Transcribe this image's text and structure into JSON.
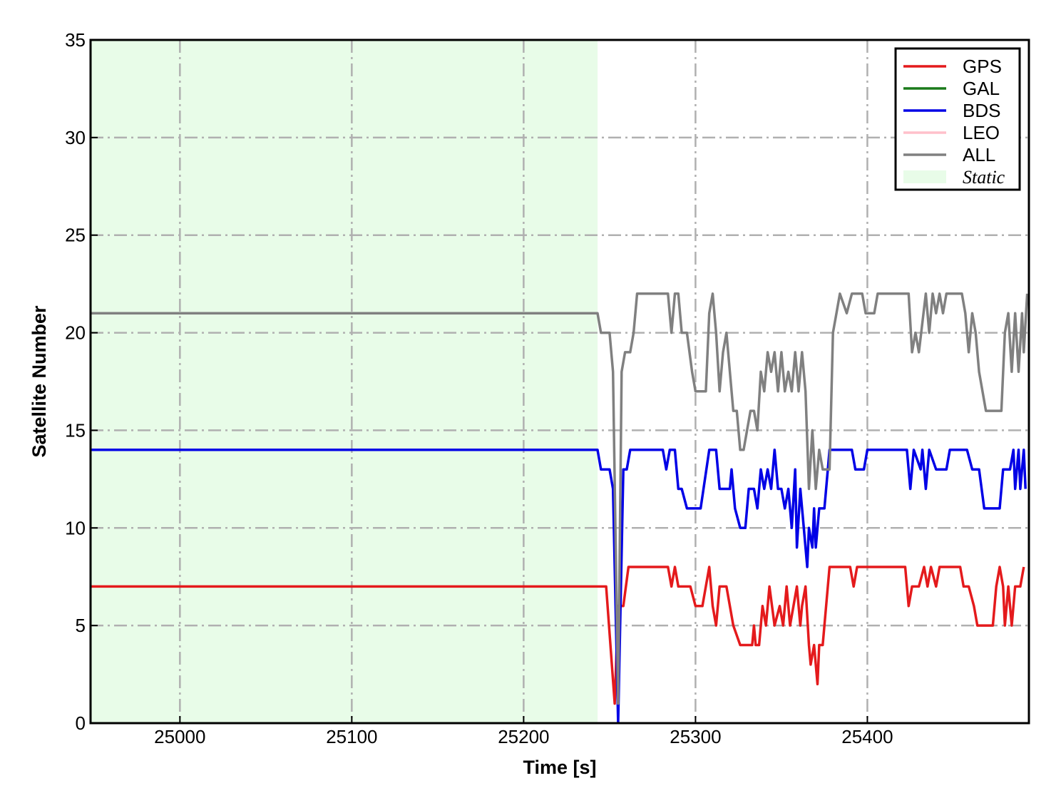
{
  "chart_data": {
    "type": "line",
    "title": "",
    "xlabel": "Time [s]",
    "ylabel": "Satellite Number",
    "xlim": [
      24948,
      25494
    ],
    "ylim": [
      0,
      35
    ],
    "xticks": [
      25000,
      25100,
      25200,
      25300,
      25400
    ],
    "yticks": [
      0,
      5,
      10,
      15,
      20,
      25,
      30,
      35
    ],
    "grid": true,
    "legend_position": "top-right",
    "static_region": {
      "label": "Static",
      "x_start": 24948,
      "x_end": 25243,
      "color": "#e8fce8"
    },
    "series": [
      {
        "name": "GPS",
        "color": "#e41a1c",
        "points": [
          [
            24948,
            7
          ],
          [
            25248,
            7
          ],
          [
            25253,
            1
          ],
          [
            25255,
            6
          ],
          [
            25258,
            6
          ],
          [
            25261,
            8
          ],
          [
            25284,
            8
          ],
          [
            25286,
            7
          ],
          [
            25288,
            8
          ],
          [
            25290,
            7
          ],
          [
            25297,
            7
          ],
          [
            25300,
            6
          ],
          [
            25304,
            6
          ],
          [
            25306,
            7
          ],
          [
            25308,
            8
          ],
          [
            25310,
            6
          ],
          [
            25312,
            5
          ],
          [
            25314,
            7
          ],
          [
            25318,
            7
          ],
          [
            25322,
            5
          ],
          [
            25326,
            4
          ],
          [
            25333,
            4
          ],
          [
            25334,
            5
          ],
          [
            25335,
            4
          ],
          [
            25337,
            4
          ],
          [
            25339,
            6
          ],
          [
            25341,
            5
          ],
          [
            25343,
            7
          ],
          [
            25346,
            5
          ],
          [
            25349,
            6
          ],
          [
            25351,
            5
          ],
          [
            25353,
            7
          ],
          [
            25355,
            5
          ],
          [
            25357,
            6
          ],
          [
            25359,
            7
          ],
          [
            25361,
            5
          ],
          [
            25362,
            6
          ],
          [
            25364,
            7
          ],
          [
            25366,
            4
          ],
          [
            25367,
            3
          ],
          [
            25369,
            4
          ],
          [
            25371,
            2
          ],
          [
            25372,
            4
          ],
          [
            25374,
            4
          ],
          [
            25378,
            8
          ],
          [
            25390,
            8
          ],
          [
            25392,
            7
          ],
          [
            25394,
            8
          ],
          [
            25422,
            8
          ],
          [
            25424,
            6
          ],
          [
            25426,
            7
          ],
          [
            25430,
            7
          ],
          [
            25433,
            8
          ],
          [
            25435,
            7
          ],
          [
            25437,
            8
          ],
          [
            25440,
            7
          ],
          [
            25442,
            8
          ],
          [
            25454,
            8
          ],
          [
            25456,
            7
          ],
          [
            25459,
            7
          ],
          [
            25462,
            6
          ],
          [
            25464,
            5
          ],
          [
            25473,
            5
          ],
          [
            25475,
            7
          ],
          [
            25477,
            8
          ],
          [
            25479,
            7
          ],
          [
            25480,
            5
          ],
          [
            25482,
            7
          ],
          [
            25484,
            5
          ],
          [
            25486,
            7
          ],
          [
            25489,
            7
          ],
          [
            25491,
            8
          ]
        ]
      },
      {
        "name": "GAL",
        "color": "#1a7a1a",
        "points": []
      },
      {
        "name": "BDS",
        "color": "#0000e6",
        "points": [
          [
            24948,
            14
          ],
          [
            25243,
            14
          ],
          [
            25245,
            13
          ],
          [
            25250,
            13
          ],
          [
            25252,
            12
          ],
          [
            25255,
            0
          ],
          [
            25258,
            13
          ],
          [
            25260,
            13
          ],
          [
            25262,
            14
          ],
          [
            25281,
            14
          ],
          [
            25283,
            13
          ],
          [
            25285,
            14
          ],
          [
            25288,
            14
          ],
          [
            25290,
            12
          ],
          [
            25292,
            12
          ],
          [
            25295,
            11
          ],
          [
            25303,
            11
          ],
          [
            25308,
            14
          ],
          [
            25312,
            14
          ],
          [
            25314,
            12
          ],
          [
            25320,
            12
          ],
          [
            25321,
            13
          ],
          [
            25323,
            11
          ],
          [
            25326,
            10
          ],
          [
            25329,
            10
          ],
          [
            25331,
            12
          ],
          [
            25334,
            12
          ],
          [
            25336,
            11
          ],
          [
            25338,
            13
          ],
          [
            25340,
            12
          ],
          [
            25342,
            13
          ],
          [
            25344,
            12
          ],
          [
            25346,
            14
          ],
          [
            25348,
            12
          ],
          [
            25350,
            12
          ],
          [
            25352,
            11
          ],
          [
            25354,
            12
          ],
          [
            25356,
            10
          ],
          [
            25358,
            13
          ],
          [
            25359,
            9
          ],
          [
            25361,
            12
          ],
          [
            25363,
            10
          ],
          [
            25365,
            8
          ],
          [
            25366,
            10
          ],
          [
            25368,
            9
          ],
          [
            25369,
            11
          ],
          [
            25370,
            9
          ],
          [
            25372,
            11
          ],
          [
            25375,
            11
          ],
          [
            25378,
            14
          ],
          [
            25391,
            14
          ],
          [
            25393,
            13
          ],
          [
            25398,
            13
          ],
          [
            25400,
            14
          ],
          [
            25423,
            14
          ],
          [
            25425,
            12
          ],
          [
            25427,
            14
          ],
          [
            25431,
            13
          ],
          [
            25432,
            14
          ],
          [
            25434,
            12
          ],
          [
            25436,
            14
          ],
          [
            25440,
            13
          ],
          [
            25446,
            13
          ],
          [
            25448,
            14
          ],
          [
            25458,
            14
          ],
          [
            25461,
            13
          ],
          [
            25465,
            13
          ],
          [
            25468,
            11
          ],
          [
            25477,
            11
          ],
          [
            25479,
            13
          ],
          [
            25483,
            13
          ],
          [
            25485,
            14
          ],
          [
            25486,
            12
          ],
          [
            25488,
            14
          ],
          [
            25489,
            12
          ],
          [
            25491,
            14
          ],
          [
            25492,
            12
          ]
        ]
      },
      {
        "name": "LEO",
        "color": "#ffc0cb",
        "points": []
      },
      {
        "name": "ALL",
        "color": "#808080",
        "points": [
          [
            24948,
            21
          ],
          [
            25243,
            21
          ],
          [
            25245,
            20
          ],
          [
            25250,
            20
          ],
          [
            25252,
            18
          ],
          [
            25255,
            1
          ],
          [
            25257,
            18
          ],
          [
            25259,
            19
          ],
          [
            25262,
            19
          ],
          [
            25264,
            20
          ],
          [
            25266,
            22
          ],
          [
            25284,
            22
          ],
          [
            25286,
            20
          ],
          [
            25288,
            22
          ],
          [
            25290,
            22
          ],
          [
            25292,
            20
          ],
          [
            25295,
            20
          ],
          [
            25298,
            18
          ],
          [
            25300,
            17
          ],
          [
            25306,
            17
          ],
          [
            25308,
            21
          ],
          [
            25310,
            22
          ],
          [
            25312,
            20
          ],
          [
            25314,
            17
          ],
          [
            25316,
            19
          ],
          [
            25318,
            20
          ],
          [
            25320,
            18
          ],
          [
            25322,
            16
          ],
          [
            25324,
            16
          ],
          [
            25326,
            14
          ],
          [
            25328,
            14
          ],
          [
            25330,
            15
          ],
          [
            25332,
            16
          ],
          [
            25334,
            16
          ],
          [
            25336,
            15
          ],
          [
            25338,
            18
          ],
          [
            25340,
            17
          ],
          [
            25342,
            19
          ],
          [
            25344,
            18
          ],
          [
            25346,
            19
          ],
          [
            25348,
            17
          ],
          [
            25350,
            19
          ],
          [
            25352,
            17
          ],
          [
            25354,
            18
          ],
          [
            25356,
            17
          ],
          [
            25358,
            19
          ],
          [
            25360,
            17
          ],
          [
            25362,
            19
          ],
          [
            25364,
            17
          ],
          [
            25366,
            12
          ],
          [
            25368,
            15
          ],
          [
            25370,
            12
          ],
          [
            25372,
            14
          ],
          [
            25374,
            13
          ],
          [
            25378,
            13
          ],
          [
            25380,
            20
          ],
          [
            25382,
            21
          ],
          [
            25384,
            22
          ],
          [
            25388,
            21
          ],
          [
            25391,
            22
          ],
          [
            25397,
            22
          ],
          [
            25399,
            21
          ],
          [
            25404,
            21
          ],
          [
            25406,
            22
          ],
          [
            25424,
            22
          ],
          [
            25426,
            19
          ],
          [
            25428,
            20
          ],
          [
            25430,
            19
          ],
          [
            25434,
            22
          ],
          [
            25436,
            20
          ],
          [
            25438,
            22
          ],
          [
            25440,
            21
          ],
          [
            25442,
            22
          ],
          [
            25444,
            21
          ],
          [
            25446,
            22
          ],
          [
            25455,
            22
          ],
          [
            25457,
            21
          ],
          [
            25459,
            19
          ],
          [
            25461,
            21
          ],
          [
            25463,
            20
          ],
          [
            25465,
            18
          ],
          [
            25467,
            17
          ],
          [
            25469,
            16
          ],
          [
            25478,
            16
          ],
          [
            25480,
            20
          ],
          [
            25482,
            21
          ],
          [
            25484,
            18
          ],
          [
            25486,
            21
          ],
          [
            25488,
            18
          ],
          [
            25490,
            21
          ],
          [
            25491,
            19
          ],
          [
            25493,
            22
          ]
        ]
      }
    ]
  }
}
